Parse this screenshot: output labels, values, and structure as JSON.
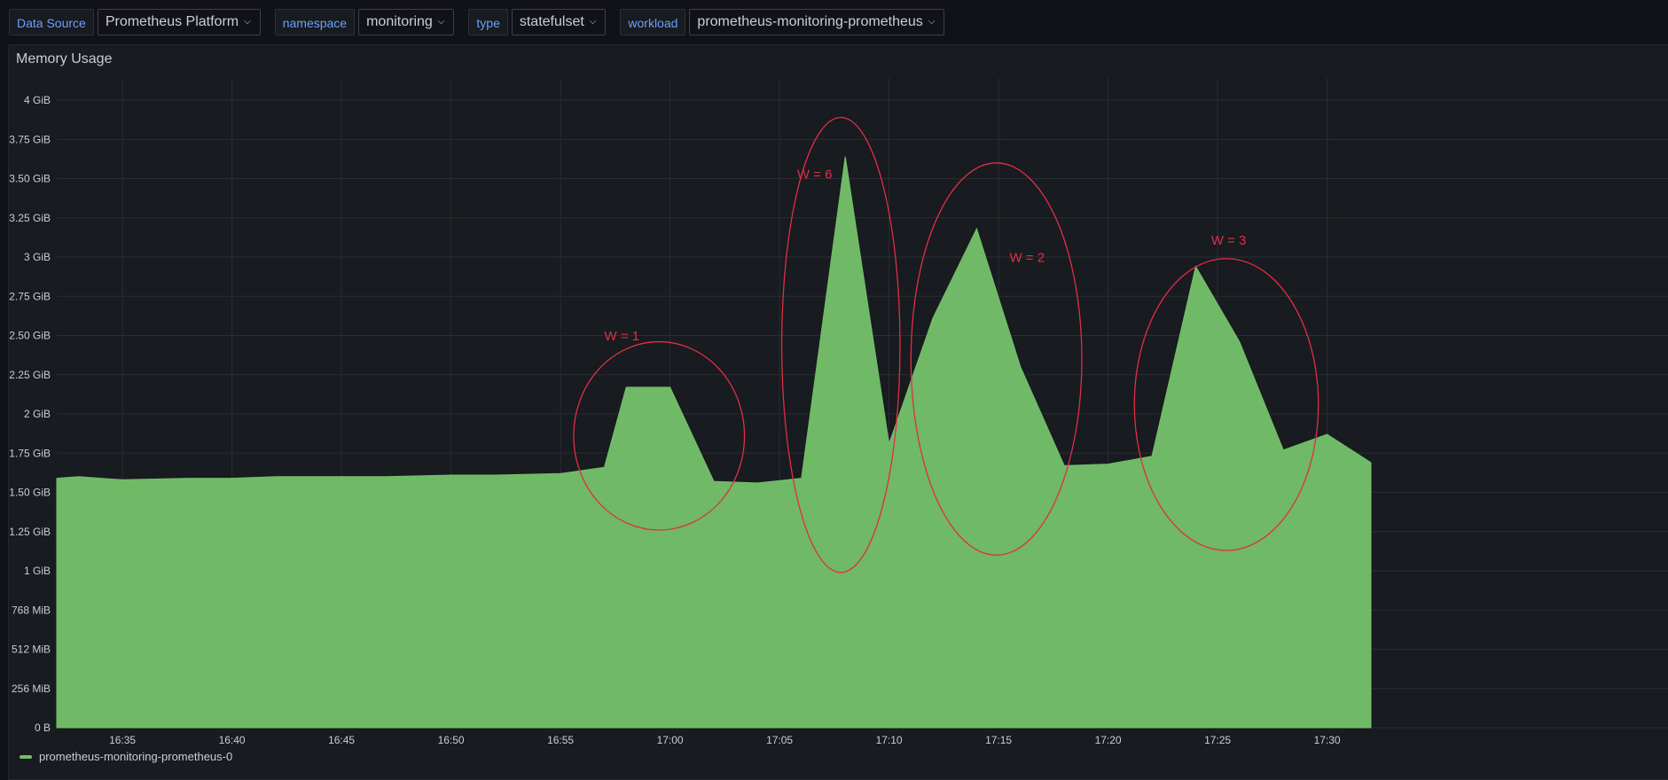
{
  "variables": [
    {
      "label": "Data Source",
      "value": "Prometheus Platform"
    },
    {
      "label": "namespace",
      "value": "monitoring"
    },
    {
      "label": "type",
      "value": "statefulset"
    },
    {
      "label": "workload",
      "value": "prometheus-monitoring-prometheus"
    }
  ],
  "panel": {
    "title": "Memory Usage",
    "legend": "prometheus-monitoring-prometheus-0",
    "series_color": "#73bf69",
    "annotation_color": "#e02f44"
  },
  "chart_data": {
    "type": "area",
    "title": "Memory Usage",
    "xlabel": "",
    "ylabel": "",
    "grid": true,
    "legend_position": "bottom-left",
    "x_range": [
      "16:32",
      "17:32"
    ],
    "y_range_gib": [
      0,
      4
    ],
    "y_ticks": [
      {
        "label": "0 B",
        "v": 0
      },
      {
        "label": "256 MiB",
        "v": 0.25
      },
      {
        "label": "512 MiB",
        "v": 0.5
      },
      {
        "label": "768 MiB",
        "v": 0.75
      },
      {
        "label": "1 GiB",
        "v": 1
      },
      {
        "label": "1.25 GiB",
        "v": 1.25
      },
      {
        "label": "1.50 GiB",
        "v": 1.5
      },
      {
        "label": "1.75 GiB",
        "v": 1.75
      },
      {
        "label": "2 GiB",
        "v": 2
      },
      {
        "label": "2.25 GiB",
        "v": 2.25
      },
      {
        "label": "2.50 GiB",
        "v": 2.5
      },
      {
        "label": "2.75 GiB",
        "v": 2.75
      },
      {
        "label": "3 GiB",
        "v": 3
      },
      {
        "label": "3.25 GiB",
        "v": 3.25
      },
      {
        "label": "3.50 GiB",
        "v": 3.5
      },
      {
        "label": "3.75 GiB",
        "v": 3.75
      },
      {
        "label": "4 GiB",
        "v": 4
      }
    ],
    "x_ticks": [
      "16:35",
      "16:40",
      "16:45",
      "16:50",
      "16:55",
      "17:00",
      "17:05",
      "17:10",
      "17:15",
      "17:20",
      "17:25",
      "17:30"
    ],
    "series": [
      {
        "name": "prometheus-monitoring-prometheus-0",
        "x": [
          "16:32",
          "16:33",
          "16:35",
          "16:38",
          "16:40",
          "16:42",
          "16:45",
          "16:47",
          "16:50",
          "16:52",
          "16:55",
          "16:57",
          "16:58",
          "17:00",
          "17:02",
          "17:04",
          "17:06",
          "17:08",
          "17:10",
          "17:12",
          "17:14",
          "17:16",
          "17:18",
          "17:20",
          "17:22",
          "17:24",
          "17:26",
          "17:28",
          "17:30",
          "17:32"
        ],
        "values": [
          1.59,
          1.6,
          1.58,
          1.59,
          1.59,
          1.6,
          1.6,
          1.6,
          1.61,
          1.61,
          1.62,
          1.66,
          2.17,
          2.17,
          1.57,
          1.56,
          1.59,
          3.64,
          1.81,
          2.61,
          3.18,
          2.3,
          1.67,
          1.68,
          1.73,
          2.94,
          2.46,
          1.77,
          1.87,
          1.69
        ]
      }
    ],
    "annotations": [
      {
        "text": "W = 1",
        "cx": "16:59.5",
        "cy": 1.86,
        "rx_min": 3.9,
        "ry": 0.6,
        "label_x": "16:57",
        "label_y": 2.47
      },
      {
        "text": "W = 6",
        "cx": "17:07.8",
        "cy": 2.44,
        "rx_min": 2.7,
        "ry": 1.45,
        "label_x": "17:05.8",
        "label_y": 3.5
      },
      {
        "text": "W = 2",
        "cx": "17:14.9",
        "cy": 2.35,
        "rx_min": 3.9,
        "ry": 1.25,
        "label_x": "17:15.5",
        "label_y": 2.97
      },
      {
        "text": "W = 3",
        "cx": "17:25.4",
        "cy": 2.06,
        "rx_min": 4.2,
        "ry": 0.93,
        "label_x": "17:24.7",
        "label_y": 3.08
      }
    ]
  }
}
